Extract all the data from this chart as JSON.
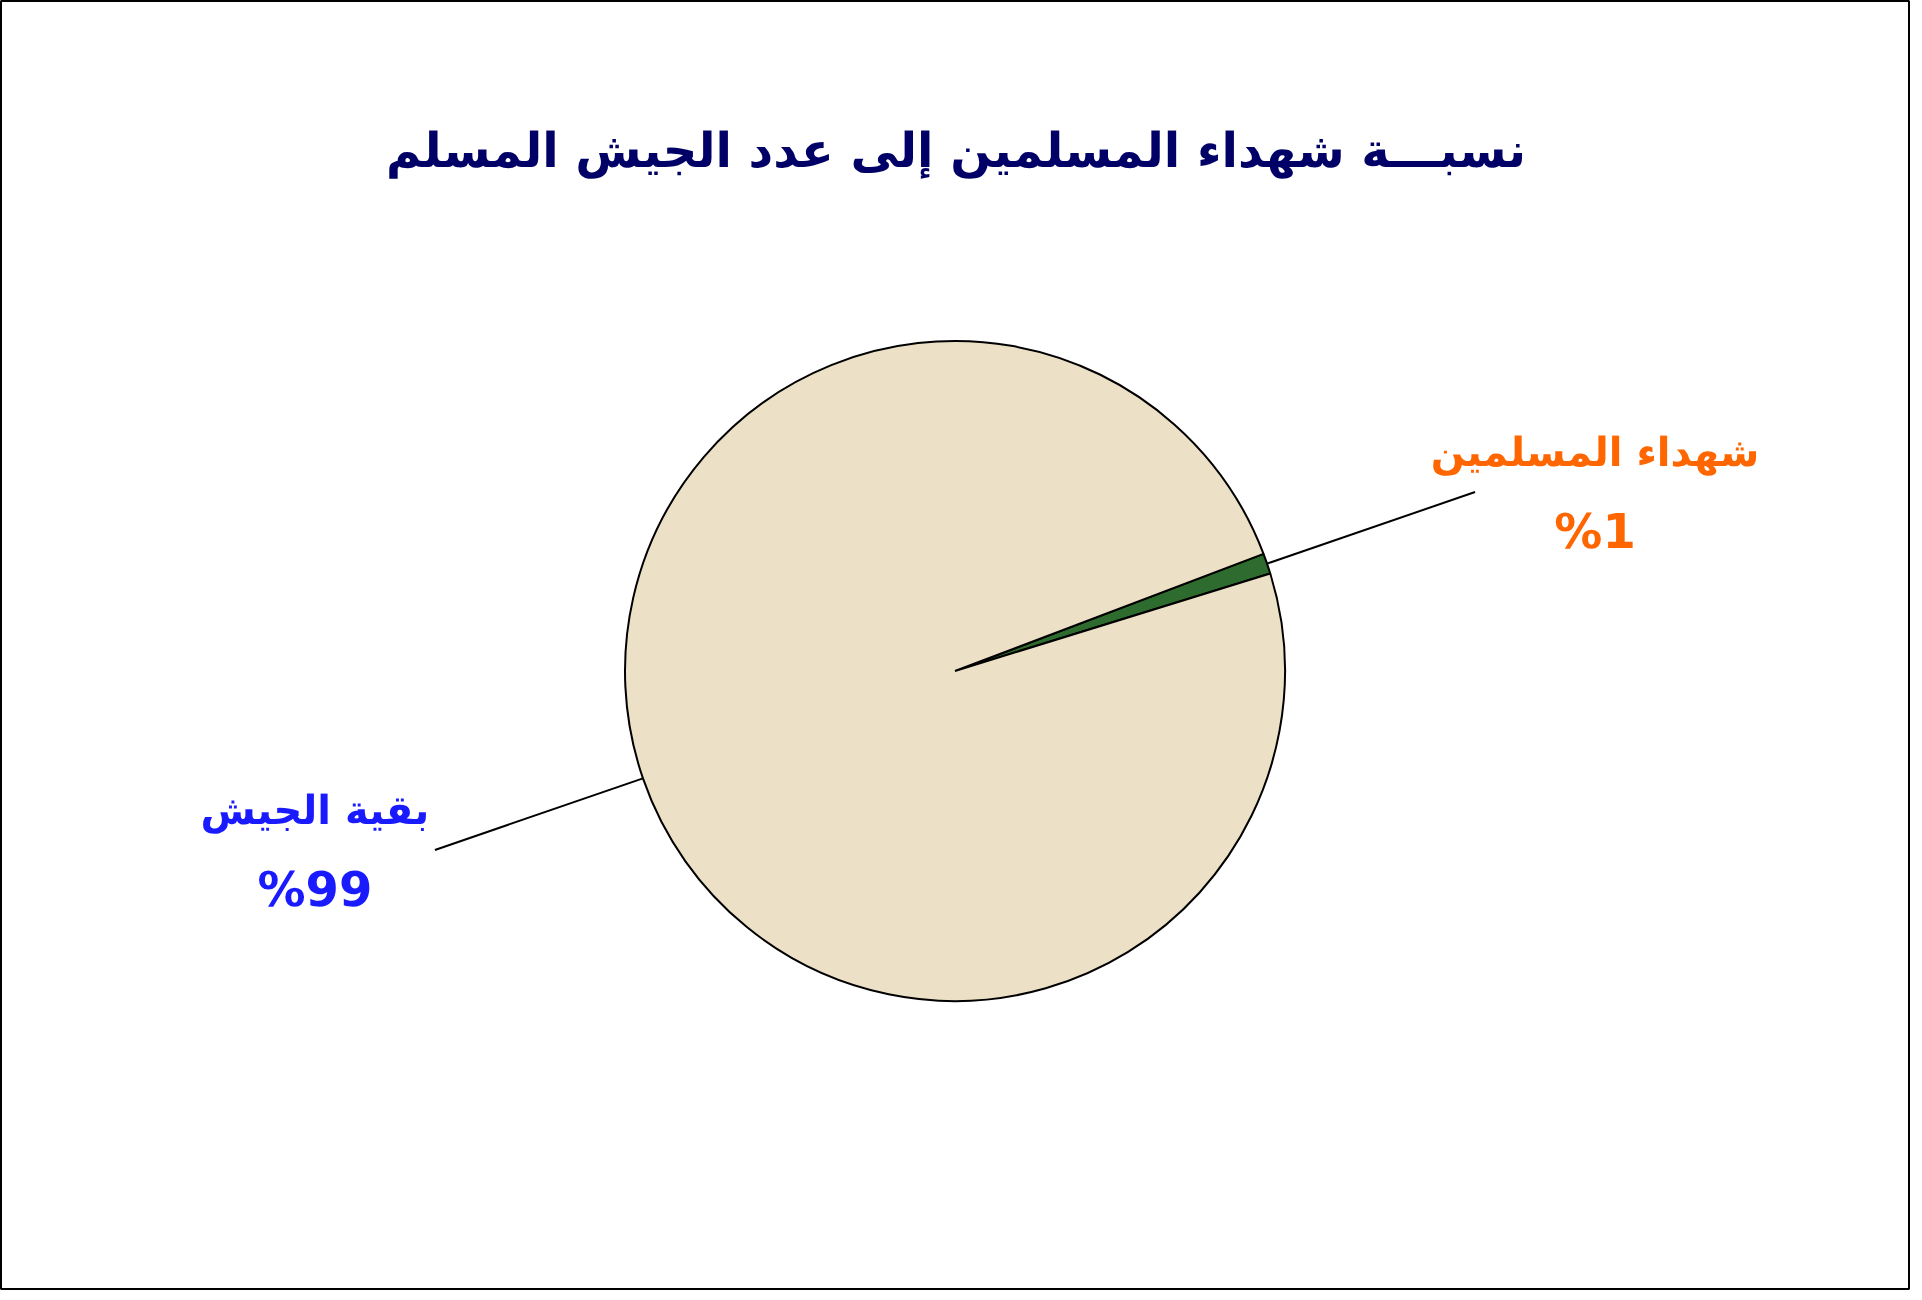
{
  "chart_data": {
    "type": "pie",
    "title": "نسبـــة شهداء المسلمين إلى عدد الجيش المسلم",
    "categories": [
      "شهداء المسلمين",
      "بقية الجيش"
    ],
    "values": [
      1,
      99
    ],
    "colors": [
      "#2e6b2e",
      "#ece0c6"
    ],
    "value_labels": [
      "%1",
      "%99"
    ],
    "legend": false
  }
}
